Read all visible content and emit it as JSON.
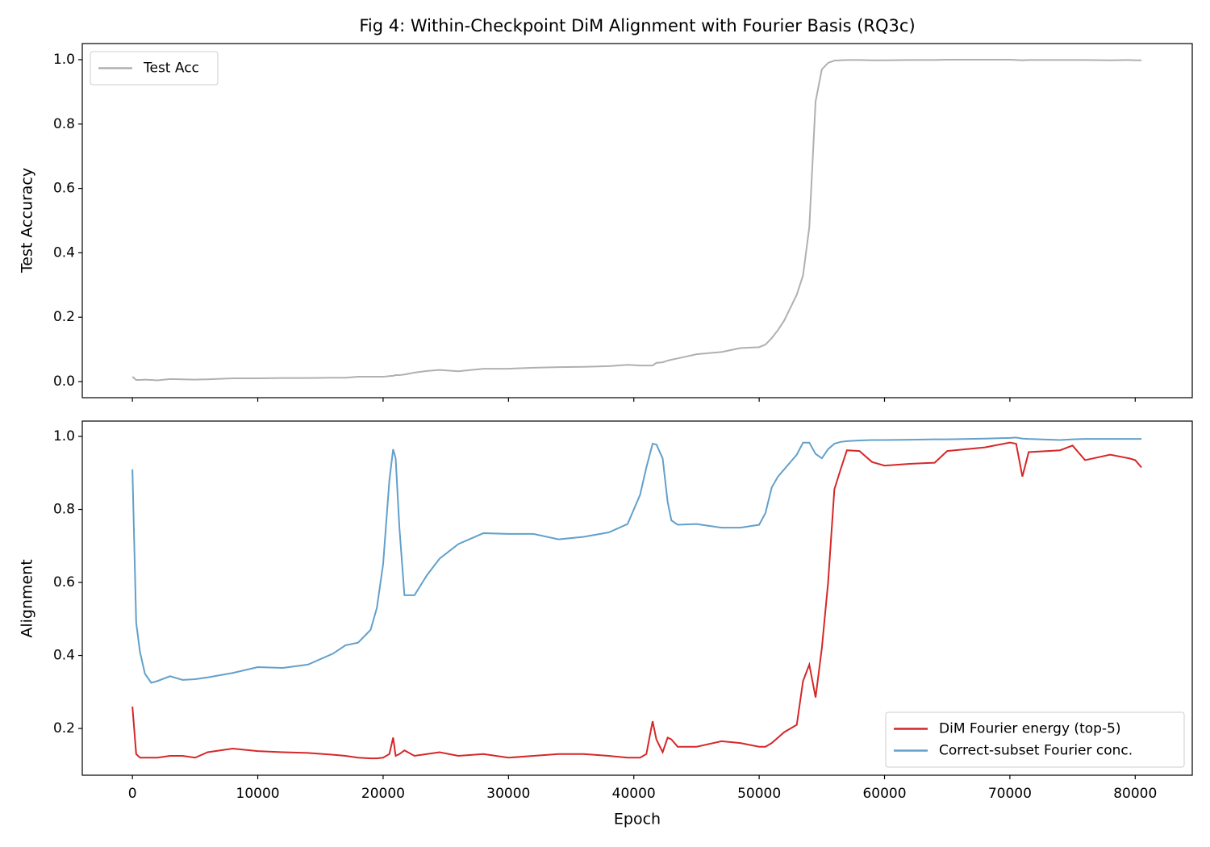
{
  "chart_data": [
    {
      "type": "line",
      "title": "Fig 4: Within-Checkpoint DiM Alignment with Fourier Basis (RQ3c)",
      "y_label": "Test Accuracy",
      "legend": "upper left",
      "grid": false,
      "xlim": [
        -4000,
        84550
      ],
      "ylim": [
        -0.05,
        1.05
      ],
      "yticks": [
        {
          "value": 0,
          "label": "0.0"
        },
        0.2,
        0.4,
        0.6,
        0.8,
        {
          "value": 1,
          "label": "1.0"
        }
      ],
      "x": [
        0,
        300,
        600,
        1000,
        1500,
        2000,
        3000,
        4000,
        5000,
        6000,
        8000,
        10000,
        12000,
        14000,
        16000,
        17000,
        18000,
        19000,
        19500,
        20000,
        20500,
        20800,
        21000,
        21300,
        21700,
        22500,
        23500,
        24500,
        26000,
        28000,
        30000,
        32000,
        34000,
        36000,
        38000,
        39500,
        40500,
        41000,
        41500,
        41800,
        42300,
        42700,
        43000,
        43500,
        45000,
        47000,
        48500,
        50000,
        50500,
        51000,
        51500,
        52000,
        53000,
        53500,
        54000,
        54500,
        55000,
        55500,
        56000,
        56500,
        57000,
        58000,
        59000,
        60000,
        62000,
        64000,
        65000,
        68000,
        70000,
        70500,
        71000,
        71500,
        74000,
        75000,
        76000,
        78000,
        79500,
        80000,
        80500
      ],
      "series": [
        {
          "name": "Test Acc",
          "color": "#b0b0b0",
          "values": [
            0.015,
            0.005,
            0.005,
            0.006,
            0.005,
            0.004,
            0.008,
            0.007,
            0.006,
            0.007,
            0.01,
            0.01,
            0.011,
            0.011,
            0.012,
            0.012,
            0.015,
            0.015,
            0.015,
            0.015,
            0.017,
            0.018,
            0.02,
            0.02,
            0.022,
            0.028,
            0.033,
            0.036,
            0.032,
            0.04,
            0.04,
            0.043,
            0.045,
            0.046,
            0.048,
            0.052,
            0.05,
            0.05,
            0.05,
            0.058,
            0.06,
            0.065,
            0.068,
            0.072,
            0.085,
            0.092,
            0.104,
            0.107,
            0.115,
            0.135,
            0.16,
            0.19,
            0.27,
            0.33,
            0.48,
            0.87,
            0.97,
            0.99,
            0.997,
            0.998,
            0.999,
            0.999,
            0.998,
            0.998,
            0.999,
            0.999,
            1.0,
            1.0,
            1.0,
            0.999,
            0.998,
            0.999,
            0.999,
            0.999,
            0.999,
            0.998,
            0.999,
            0.998,
            0.998
          ]
        }
      ]
    },
    {
      "type": "line",
      "x_label": "Epoch",
      "y_label": "Alignment",
      "legend": "lower right",
      "grid": false,
      "xlim": [
        -4000,
        84550
      ],
      "ylim": [
        0.072,
        1.042
      ],
      "xticks": [
        0,
        10000,
        20000,
        30000,
        40000,
        50000,
        60000,
        70000,
        80000
      ],
      "yticks": [
        0.2,
        0.4,
        0.6,
        0.8,
        {
          "value": 1,
          "label": "1.0"
        }
      ],
      "x": [
        0,
        300,
        600,
        1000,
        1500,
        2000,
        3000,
        4000,
        5000,
        6000,
        8000,
        10000,
        12000,
        14000,
        16000,
        17000,
        18000,
        19000,
        19500,
        20000,
        20500,
        20800,
        21000,
        21300,
        21700,
        22500,
        23500,
        24500,
        26000,
        28000,
        30000,
        32000,
        34000,
        36000,
        38000,
        39500,
        40500,
        41000,
        41500,
        41800,
        42300,
        42700,
        43000,
        43500,
        45000,
        47000,
        48500,
        50000,
        50500,
        51000,
        51500,
        52000,
        53000,
        53500,
        54000,
        54500,
        55000,
        55500,
        56000,
        56500,
        57000,
        58000,
        59000,
        60000,
        62000,
        64000,
        65000,
        68000,
        70000,
        70500,
        71000,
        71500,
        74000,
        75000,
        76000,
        78000,
        79500,
        80000,
        80500
      ],
      "series": [
        {
          "name": "DiM Fourier energy (top-5)",
          "color": "#d62728",
          "values": [
            0.26,
            0.13,
            0.12,
            0.12,
            0.12,
            0.12,
            0.125,
            0.125,
            0.12,
            0.135,
            0.145,
            0.138,
            0.135,
            0.133,
            0.128,
            0.125,
            0.12,
            0.118,
            0.118,
            0.12,
            0.13,
            0.175,
            0.125,
            0.13,
            0.14,
            0.125,
            0.13,
            0.135,
            0.125,
            0.13,
            0.12,
            0.125,
            0.13,
            0.13,
            0.125,
            0.12,
            0.12,
            0.13,
            0.22,
            0.17,
            0.135,
            0.175,
            0.17,
            0.15,
            0.15,
            0.165,
            0.16,
            0.15,
            0.15,
            0.16,
            0.175,
            0.19,
            0.21,
            0.33,
            0.375,
            0.285,
            0.42,
            0.6,
            0.855,
            0.91,
            0.962,
            0.96,
            0.93,
            0.92,
            0.925,
            0.928,
            0.96,
            0.97,
            0.983,
            0.98,
            0.89,
            0.957,
            0.962,
            0.975,
            0.935,
            0.95,
            0.94,
            0.935,
            0.915
          ]
        },
        {
          "name": "Correct-subset Fourier conc.",
          "color": "#62a0cb",
          "values": [
            0.91,
            0.49,
            0.41,
            0.35,
            0.325,
            0.33,
            0.343,
            0.333,
            0.335,
            0.34,
            0.352,
            0.368,
            0.366,
            0.375,
            0.405,
            0.428,
            0.435,
            0.47,
            0.53,
            0.65,
            0.88,
            0.965,
            0.94,
            0.75,
            0.565,
            0.565,
            0.62,
            0.665,
            0.705,
            0.735,
            0.733,
            0.733,
            0.718,
            0.725,
            0.737,
            0.76,
            0.84,
            0.915,
            0.98,
            0.978,
            0.94,
            0.82,
            0.77,
            0.758,
            0.76,
            0.75,
            0.75,
            0.758,
            0.79,
            0.86,
            0.89,
            0.91,
            0.95,
            0.983,
            0.983,
            0.952,
            0.94,
            0.965,
            0.98,
            0.985,
            0.987,
            0.989,
            0.99,
            0.99,
            0.991,
            0.992,
            0.992,
            0.994,
            0.996,
            0.997,
            0.994,
            0.993,
            0.99,
            0.992,
            0.993,
            0.993,
            0.993,
            0.993,
            0.993
          ]
        }
      ]
    }
  ]
}
